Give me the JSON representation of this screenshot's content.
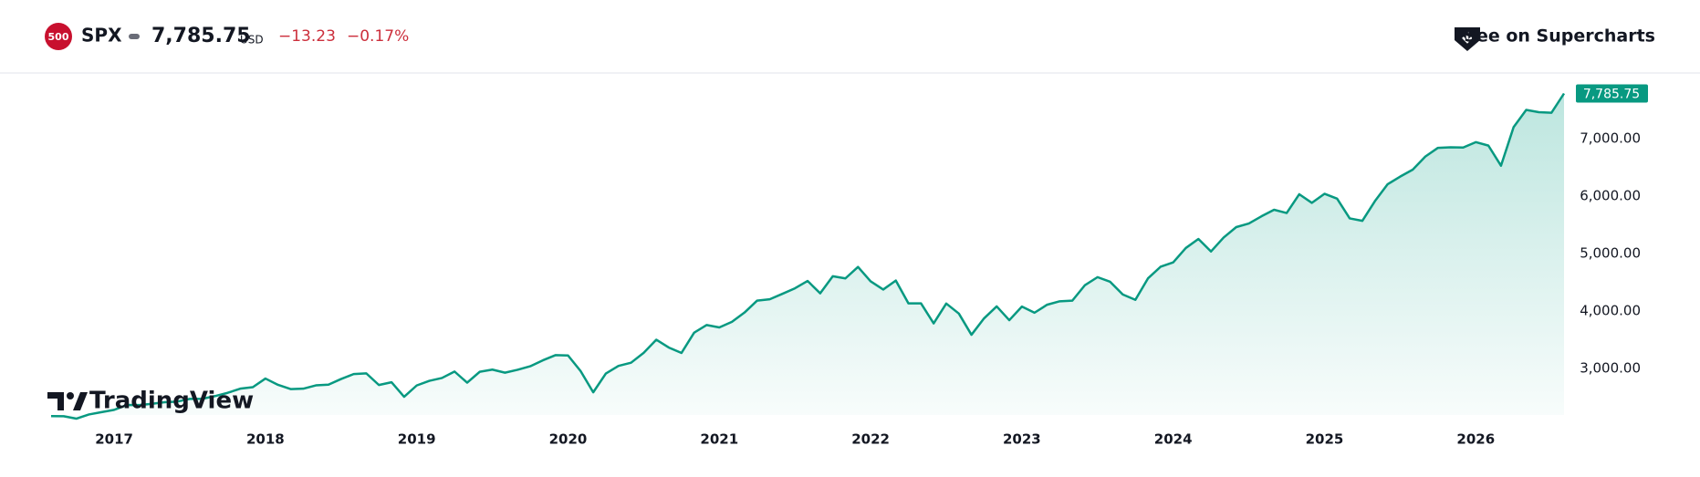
{
  "header": {
    "logo": "500",
    "symbol": "SPX",
    "price": "7,785.75",
    "currency": "USD",
    "change": "−13.23",
    "change_percent": "−0.17%",
    "link": "See on Supercharts"
  },
  "brand": "TradingView",
  "chart_data": {
    "type": "area",
    "categories": [
      null,
      null,
      null,
      null,
      null,
      "2017",
      null,
      null,
      null,
      null,
      null,
      null,
      null,
      null,
      null,
      null,
      null,
      "2018",
      null,
      null,
      null,
      null,
      null,
      null,
      null,
      null,
      null,
      null,
      null,
      "2019",
      null,
      null,
      null,
      null,
      null,
      null,
      null,
      null,
      null,
      null,
      null,
      "2020",
      null,
      null,
      null,
      null,
      null,
      null,
      null,
      null,
      null,
      null,
      null,
      "2021",
      null,
      null,
      null,
      null,
      null,
      null,
      null,
      null,
      null,
      null,
      null,
      "2022",
      null,
      null,
      null,
      null,
      null,
      null,
      null,
      null,
      null,
      null,
      null,
      "2023",
      null,
      null,
      null,
      null,
      null,
      null,
      null,
      null,
      null,
      null,
      null,
      "2024",
      null,
      null,
      null,
      null,
      null,
      null,
      null,
      null,
      null,
      null,
      null,
      "2025",
      null,
      null,
      null,
      null,
      null,
      null,
      null,
      null,
      null,
      null,
      null,
      "2026",
      null,
      null,
      null,
      null,
      null,
      null,
      null
    ],
    "values": [
      2170,
      2168,
      2126,
      2199,
      2239,
      2279,
      2364,
      2363,
      2384,
      2412,
      2423,
      2470,
      2472,
      2519,
      2575,
      2648,
      2674,
      2824,
      2714,
      2641,
      2648,
      2705,
      2718,
      2816,
      2902,
      2914,
      2712,
      2760,
      2507,
      2704,
      2784,
      2834,
      2946,
      2752,
      2942,
      2980,
      2926,
      2977,
      3038,
      3141,
      3231,
      3226,
      2954,
      2585,
      2912,
      3044,
      3100,
      3271,
      3500,
      3363,
      3270,
      3622,
      3756,
      3714,
      3811,
      3973,
      4181,
      4204,
      4298,
      4395,
      4523,
      4308,
      4605,
      4567,
      4766,
      4516,
      4374,
      4530,
      4132,
      4132,
      3785,
      4130,
      3955,
      3586,
      3872,
      4080,
      3840,
      4077,
      3970,
      4109,
      4169,
      4180,
      4450,
      4589,
      4508,
      4288,
      4194,
      4568,
      4770,
      4846,
      5096,
      5254,
      5036,
      5278,
      5460,
      5522,
      5648,
      5762,
      5705,
      6032,
      5882,
      6040,
      5955,
      5612,
      5569,
      5912,
      6205,
      6339,
      6460,
      6688,
      6840,
      6849,
      6845,
      6939,
      6879,
      6529,
      7200,
      7500,
      7460,
      7450,
      7785.75
    ],
    "color": "#089981",
    "ylim": [
      2190,
      8000
    ],
    "yticks": [
      {
        "value": 3000,
        "label": "3,000.00"
      },
      {
        "value": 4000,
        "label": "4,000.00"
      },
      {
        "value": 5000,
        "label": "5,000.00"
      },
      {
        "value": 6000,
        "label": "6,000.00"
      },
      {
        "value": 7000,
        "label": "7,000.00"
      }
    ]
  }
}
